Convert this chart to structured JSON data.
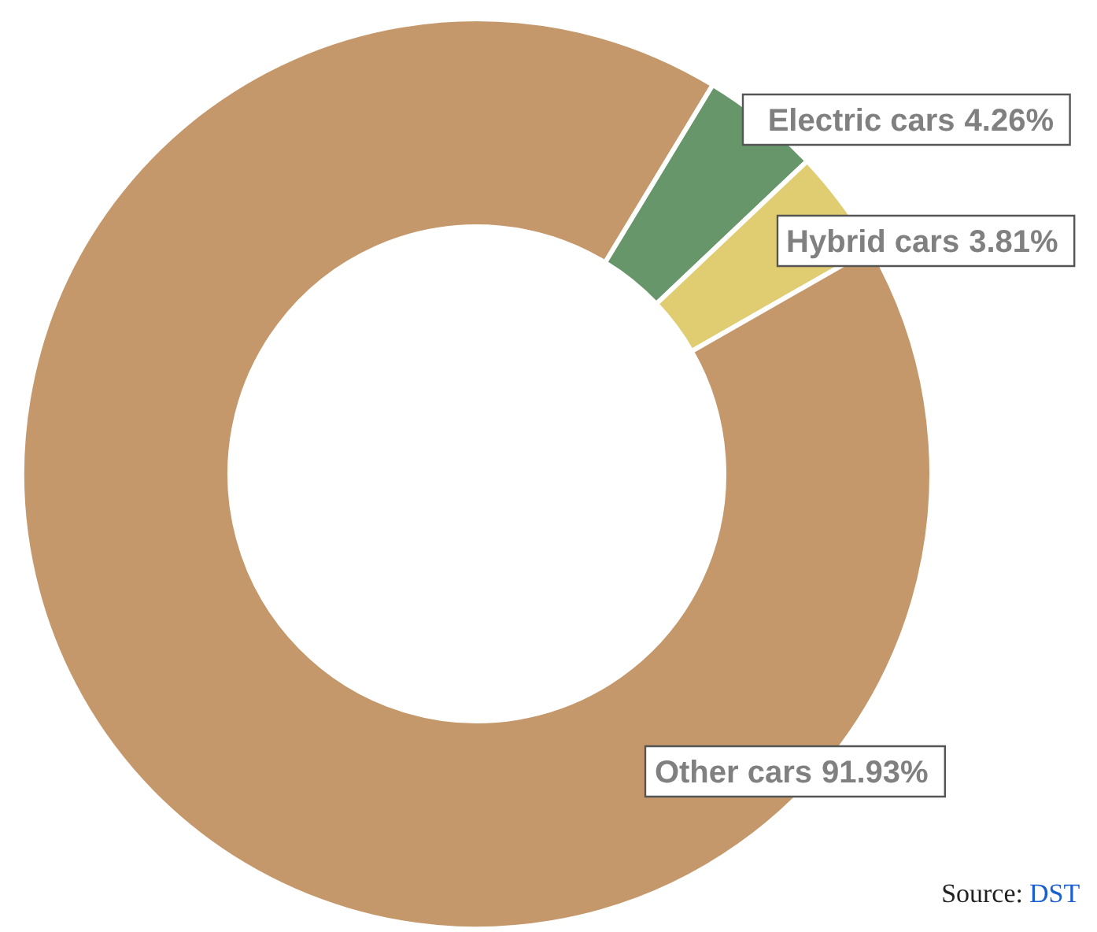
{
  "chart_data": {
    "type": "donut",
    "categories": [
      "Electric cars",
      "Hybrid cars",
      "Other cars"
    ],
    "values": [
      4.26,
      3.81,
      91.93
    ],
    "colors": [
      "#68966b",
      "#e0cd72",
      "#c4986a"
    ],
    "value_labels": [
      "4.26%",
      "3.81%",
      "91.93%"
    ],
    "annotations": [
      "Source: DST"
    ]
  }
}
